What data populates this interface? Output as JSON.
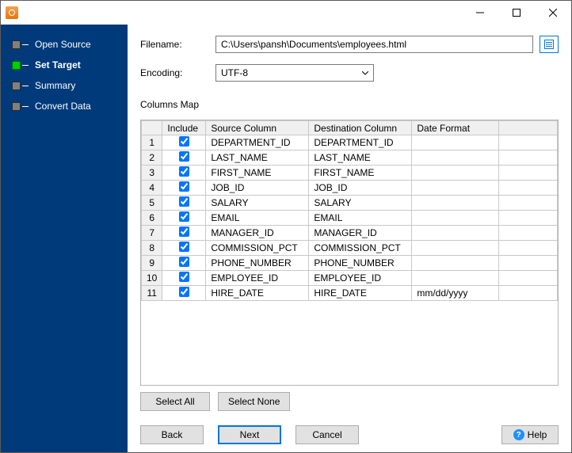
{
  "window": {
    "title": ""
  },
  "sidebar": {
    "steps": [
      {
        "label": "Open Source",
        "current": false
      },
      {
        "label": "Set Target",
        "current": true
      },
      {
        "label": "Summary",
        "current": false
      },
      {
        "label": "Convert Data",
        "current": false
      }
    ]
  },
  "form": {
    "filename_label": "Filename:",
    "filename_value": "C:\\Users\\pansh\\Documents\\employees.html",
    "encoding_label": "Encoding:",
    "encoding_value": "UTF-8",
    "columns_map_label": "Columns Map"
  },
  "grid": {
    "headers": {
      "include": "Include",
      "source": "Source Column",
      "dest": "Destination Column",
      "date": "Date Format"
    },
    "rows": [
      {
        "n": "1",
        "include": true,
        "source": "DEPARTMENT_ID",
        "dest": "DEPARTMENT_ID",
        "date": ""
      },
      {
        "n": "2",
        "include": true,
        "source": "LAST_NAME",
        "dest": "LAST_NAME",
        "date": ""
      },
      {
        "n": "3",
        "include": true,
        "source": "FIRST_NAME",
        "dest": "FIRST_NAME",
        "date": ""
      },
      {
        "n": "4",
        "include": true,
        "source": "JOB_ID",
        "dest": "JOB_ID",
        "date": ""
      },
      {
        "n": "5",
        "include": true,
        "source": "SALARY",
        "dest": "SALARY",
        "date": ""
      },
      {
        "n": "6",
        "include": true,
        "source": "EMAIL",
        "dest": "EMAIL",
        "date": ""
      },
      {
        "n": "7",
        "include": true,
        "source": "MANAGER_ID",
        "dest": "MANAGER_ID",
        "date": ""
      },
      {
        "n": "8",
        "include": true,
        "source": "COMMISSION_PCT",
        "dest": "COMMISSION_PCT",
        "date": ""
      },
      {
        "n": "9",
        "include": true,
        "source": "PHONE_NUMBER",
        "dest": "PHONE_NUMBER",
        "date": ""
      },
      {
        "n": "10",
        "include": true,
        "source": "EMPLOYEE_ID",
        "dest": "EMPLOYEE_ID",
        "date": ""
      },
      {
        "n": "11",
        "include": true,
        "source": "HIRE_DATE",
        "dest": "HIRE_DATE",
        "date": "mm/dd/yyyy"
      }
    ]
  },
  "buttons": {
    "select_all": "Select All",
    "select_none": "Select None",
    "back": "Back",
    "next": "Next",
    "cancel": "Cancel",
    "help": "Help"
  },
  "colors": {
    "sidebar_bg": "#003a7a",
    "accent": "#0078d7",
    "step_inactive": "#808080",
    "step_active": "#00d000",
    "button_bg": "#e1e1e1",
    "grid_border": "#c8c8c8"
  }
}
